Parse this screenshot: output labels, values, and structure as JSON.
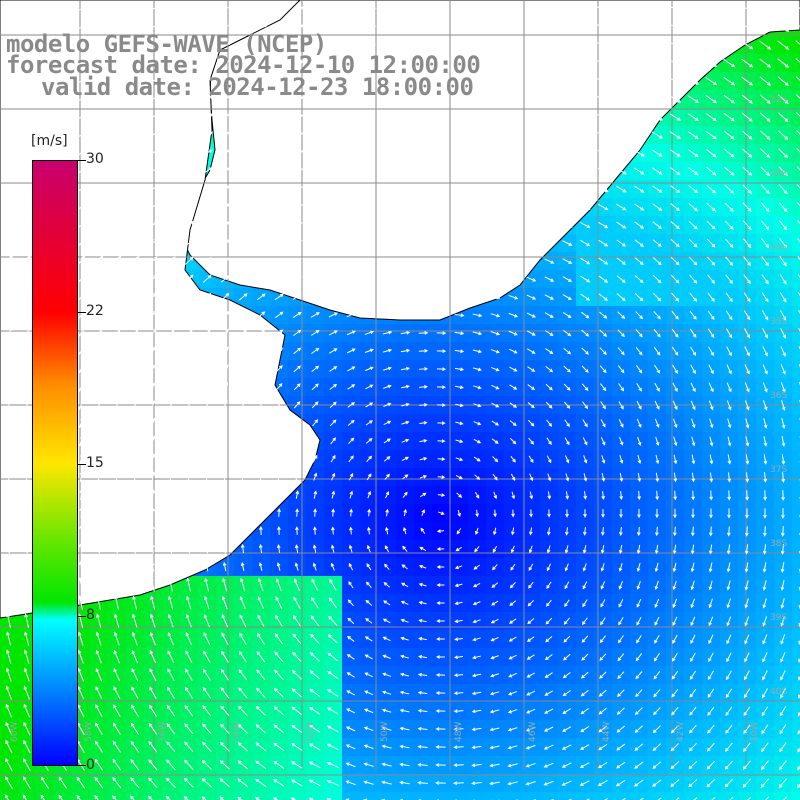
{
  "title": {
    "line1": "modelo GEFS-WAVE (NCEP)",
    "line2": "forecast date: 2024-12-10 12:00:00",
    "line3": "valid date: 2024-12-23 18:00:00"
  },
  "colorbar": {
    "unit": "[m/s]",
    "ticks": [
      "30",
      "22",
      "15",
      "8",
      "0"
    ],
    "min": 0,
    "max": 30,
    "colors": [
      "#0000ff",
      "#00a0ff",
      "#00ffff",
      "#00e600",
      "#ffe600",
      "#ff8c00",
      "#ff0000",
      "#c8006e"
    ]
  },
  "grid": {
    "lon_labels": [
      "60W",
      "58W",
      "56W",
      "54W",
      "52W",
      "50W",
      "48W",
      "46W",
      "44W",
      "42W",
      "40W"
    ],
    "lat_labels": [
      "32S",
      "33S",
      "34S",
      "35S",
      "36S",
      "37S",
      "38S",
      "39S",
      "40S"
    ]
  }
}
